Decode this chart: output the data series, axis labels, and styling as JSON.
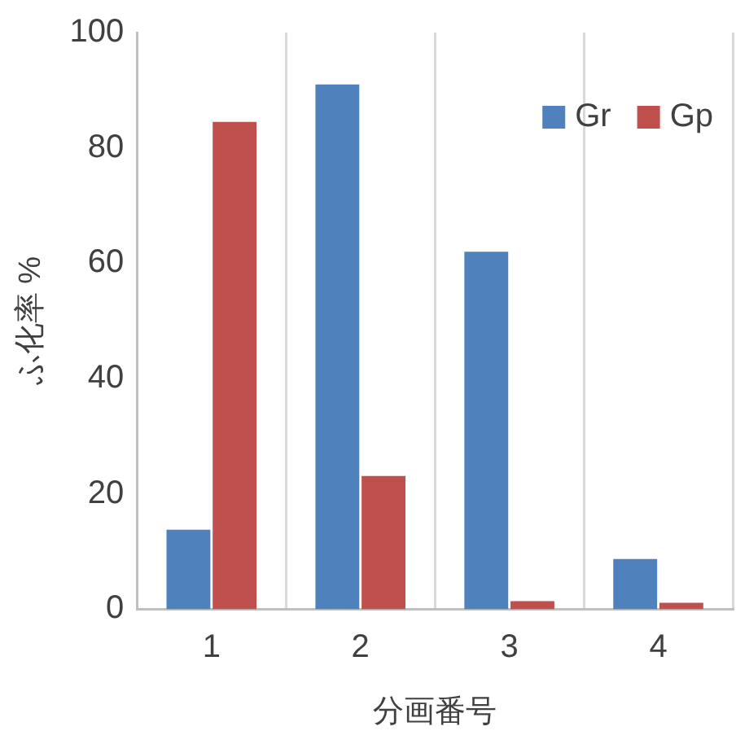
{
  "chart_data": {
    "type": "bar",
    "xlabel": "分画番号",
    "ylabel": "ふ化率 %",
    "categories": [
      "1",
      "2",
      "3",
      "4"
    ],
    "series": [
      {
        "name": "Gr",
        "color": "#4f81bd",
        "values": [
          13.8,
          91,
          62,
          8.7
        ]
      },
      {
        "name": "Gp",
        "color": "#c0504d",
        "values": [
          84.5,
          23.1,
          1.4,
          1.1
        ]
      }
    ],
    "ylim": [
      0,
      100
    ],
    "yticks": [
      0,
      20,
      40,
      60,
      80,
      100
    ],
    "grid": "x",
    "legend": "top right"
  }
}
